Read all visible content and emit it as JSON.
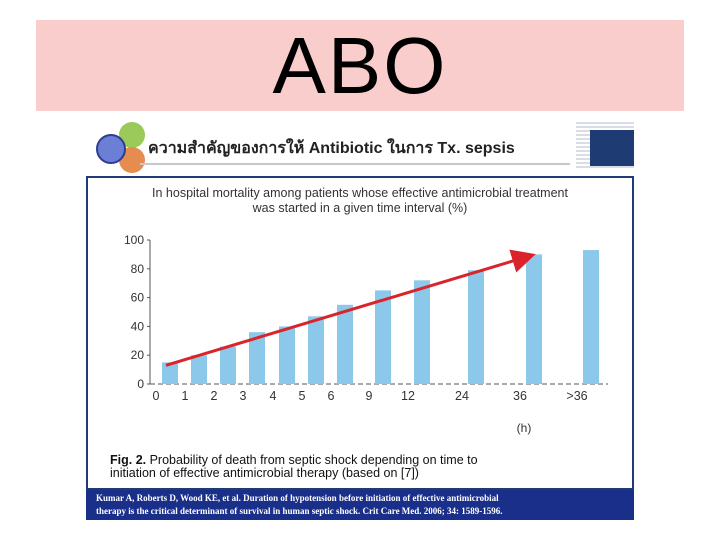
{
  "slide": {
    "title": "ABO"
  },
  "figure_header": {
    "text": "ความสำคัญของการให้ Antibiotic ในการ Tx. sepsis"
  },
  "chart_data": {
    "type": "bar",
    "title": "In hospital mortality among patients whose effective antimicrobial treatment was started in a given time interval (%)",
    "xlabel": "(h)",
    "ylabel": "",
    "categories": [
      "0",
      "1",
      "2",
      "3",
      "4",
      "5",
      "6",
      "9",
      "12",
      "24",
      "36",
      ">36"
    ],
    "values": [
      15,
      20,
      26,
      36,
      40,
      47,
      55,
      65,
      72,
      79,
      90,
      93
    ],
    "ylim": [
      0,
      100
    ],
    "yticks": [
      "0",
      "20",
      "40",
      "60",
      "80",
      "100"
    ],
    "bar_color": "#8cc8ea",
    "trend_color": "#d8242a",
    "grid": false,
    "trend_arrow": true
  },
  "fig_caption": {
    "label": "Fig. 2.",
    "line1": " Probability of death from septic shock depending on time to",
    "line2": "initiation of effective antimicrobial therapy (based on [7])"
  },
  "citation": {
    "line1": "Kumar A, Roberts D, Wood KE, et al. Duration of hypotension before initiation of effective antimicrobial",
    "line2": "therapy is the critical determinant of survival in human septic shock. Crit Care Med. 2006; 34: 1589-1596."
  }
}
